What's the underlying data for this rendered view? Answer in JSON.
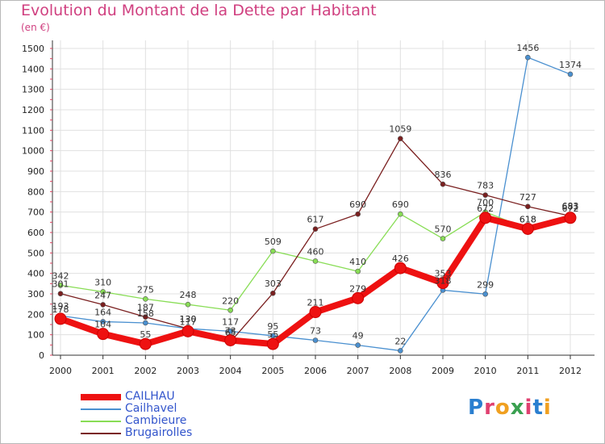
{
  "chart_data": {
    "type": "line",
    "title": "Evolution du Montant de la Dette par Habitant",
    "subtitle": "(en €)",
    "x": [
      "2000",
      "2001",
      "2002",
      "2003",
      "2004",
      "2005",
      "2006",
      "2007",
      "2008",
      "2009",
      "2010",
      "2011",
      "2012"
    ],
    "ylim": [
      0,
      1500
    ],
    "yticks": [
      0,
      100,
      200,
      300,
      400,
      500,
      600,
      700,
      800,
      900,
      1000,
      1100,
      1200,
      1300,
      1400,
      1500
    ],
    "grid": true,
    "series": [
      {
        "name": "CAILHAU",
        "color": "#ee1111",
        "bold": true,
        "values": [
          178,
          104,
          55,
          117,
          73,
          55,
          211,
          279,
          426,
          353,
          672,
          618,
          672
        ]
      },
      {
        "name": "Cailhavel",
        "color": "#4a90d0",
        "bold": false,
        "values": [
          193,
          164,
          158,
          130,
          117,
          95,
          73,
          49,
          22,
          318,
          299,
          1456,
          1374
        ]
      },
      {
        "name": "Cambieure",
        "color": "#88dd55",
        "bold": false,
        "values": [
          342,
          310,
          275,
          248,
          220,
          509,
          460,
          410,
          690,
          570,
          700,
          618,
          683
        ]
      },
      {
        "name": "Brugairolles",
        "color": "#7a1f1f",
        "bold": false,
        "values": [
          301,
          247,
          187,
          130,
          65,
          303,
          617,
          690,
          1059,
          836,
          783,
          727,
          681
        ]
      }
    ]
  },
  "logo": {
    "text": "Proxiti"
  }
}
